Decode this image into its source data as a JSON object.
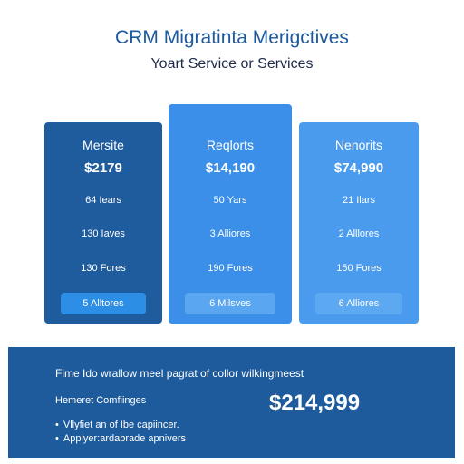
{
  "header": {
    "title": "CRM Migratinta Merigctives",
    "subtitle": "Yoart Service or Services"
  },
  "plans": [
    {
      "name": "Mersite",
      "price": "$2179",
      "features": [
        "64 Iears",
        "130 Iaves",
        "130 Fores"
      ],
      "button": "5 Alltores"
    },
    {
      "name": "Reqlorts",
      "price": "$14,190",
      "features": [
        "50 Yars",
        "3 Alliores",
        "190 Fores"
      ],
      "button": "6 Milsves"
    },
    {
      "name": "Nenorits",
      "price": "$74,990",
      "features": [
        "21 Ilars",
        "2 Alllores",
        "150 Fores"
      ],
      "button": "6 Alliores"
    }
  ],
  "summary": {
    "headline": "Fime Ido wrallow meel pagrat of collor wilkingmeest",
    "label": "Hemeret Comfiinges",
    "total": "$214,999",
    "bullets": [
      "Vllyfiet an of Ibe capiincer.",
      "Applyer:ardabrade apnivers"
    ]
  }
}
